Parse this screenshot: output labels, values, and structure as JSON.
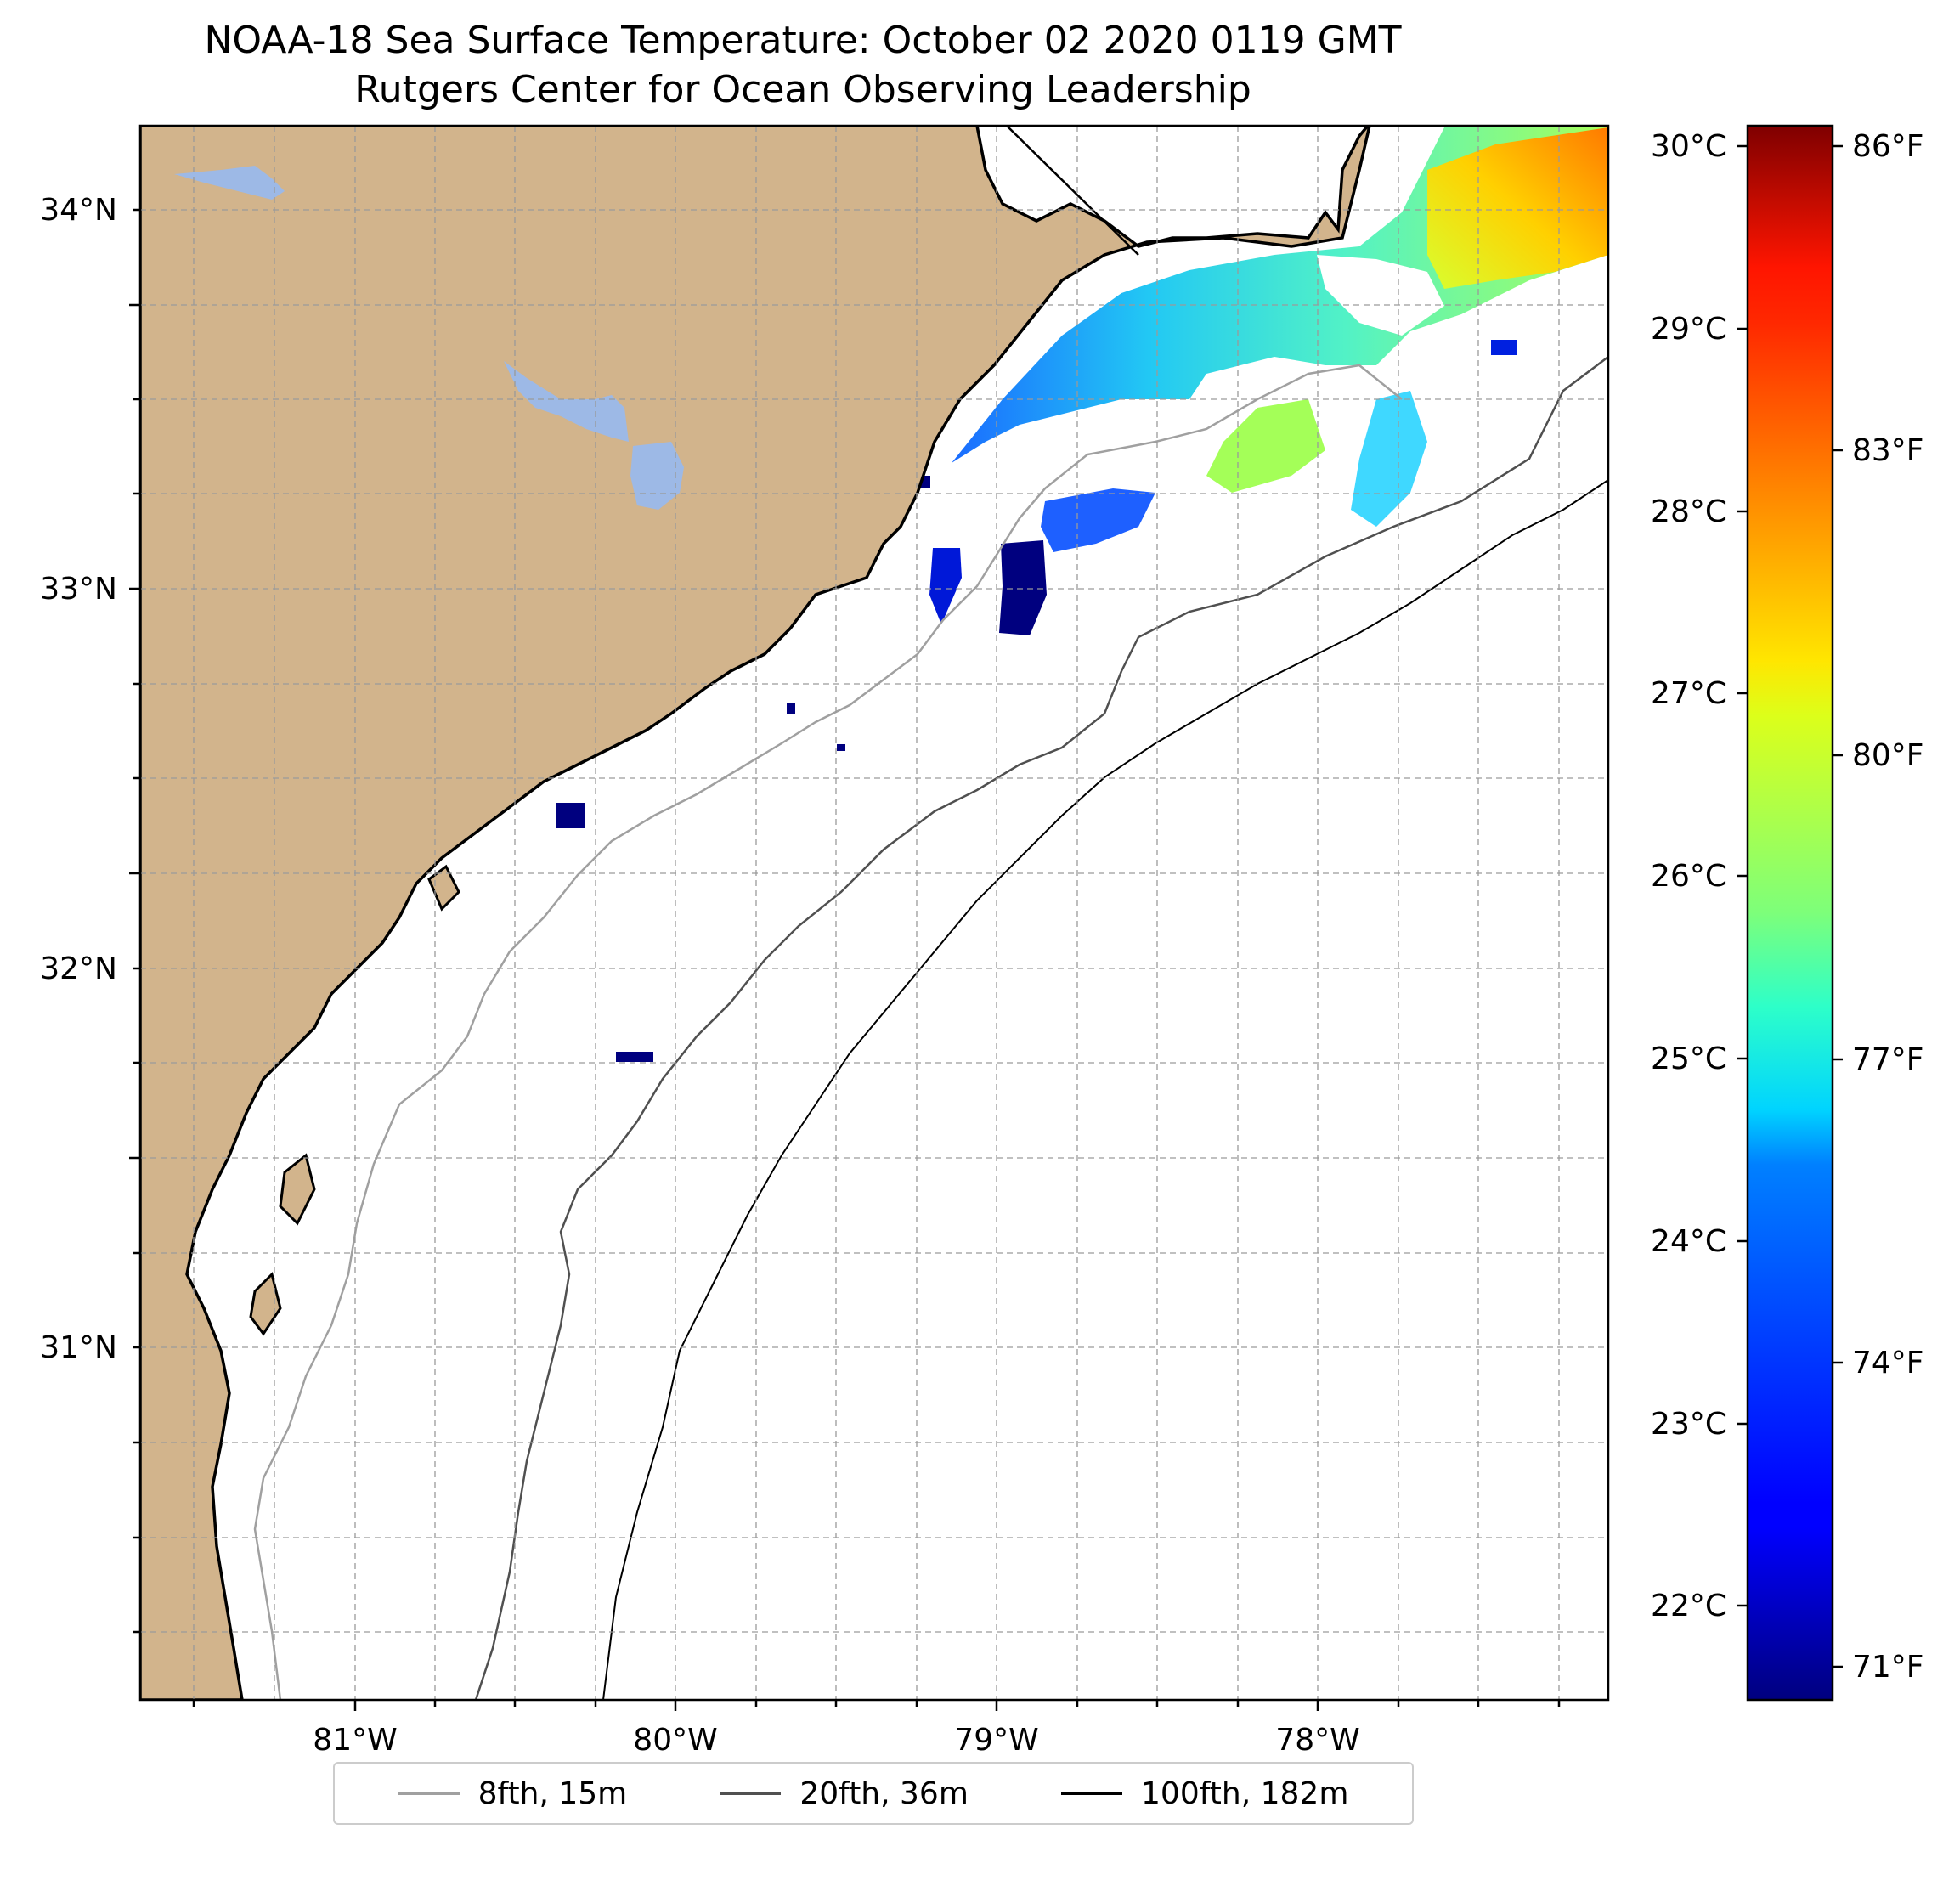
{
  "title": {
    "line1": "NOAA-18 Sea Surface Temperature: October 02 2020 0119 GMT",
    "line2": "Rutgers Center for Ocean Observing Leadership"
  },
  "map": {
    "lon_range": [
      -81.67,
      -77.13
    ],
    "lat_range": [
      30.22,
      34.23
    ],
    "x_ticks": [
      "81°W",
      "80°W",
      "79°W",
      "78°W"
    ],
    "y_ticks": [
      "34°N",
      "33°N",
      "32°N",
      "31°N"
    ],
    "gridlines": true,
    "land_color": "#d2b48c",
    "lake_color": "#9db9e6",
    "ocean_color": "#ffffff",
    "coastline_color": "#000000"
  },
  "colorbar": {
    "colormap": "jet",
    "celsius_ticks": [
      "30°C",
      "29°C",
      "28°C",
      "27°C",
      "26°C",
      "25°C",
      "24°C",
      "23°C",
      "22°C"
    ],
    "fahrenheit_ticks": [
      "86°F",
      "83°F",
      "80°F",
      "77°F",
      "74°F",
      "71°F"
    ],
    "range_c": [
      21.6,
      30.1
    ]
  },
  "legend": {
    "items": [
      {
        "label": "8fth, 15m",
        "color": "#a0a0a0"
      },
      {
        "label": "20fth, 36m",
        "color": "#505050"
      },
      {
        "label": "100fth, 182m",
        "color": "#000000"
      }
    ]
  }
}
